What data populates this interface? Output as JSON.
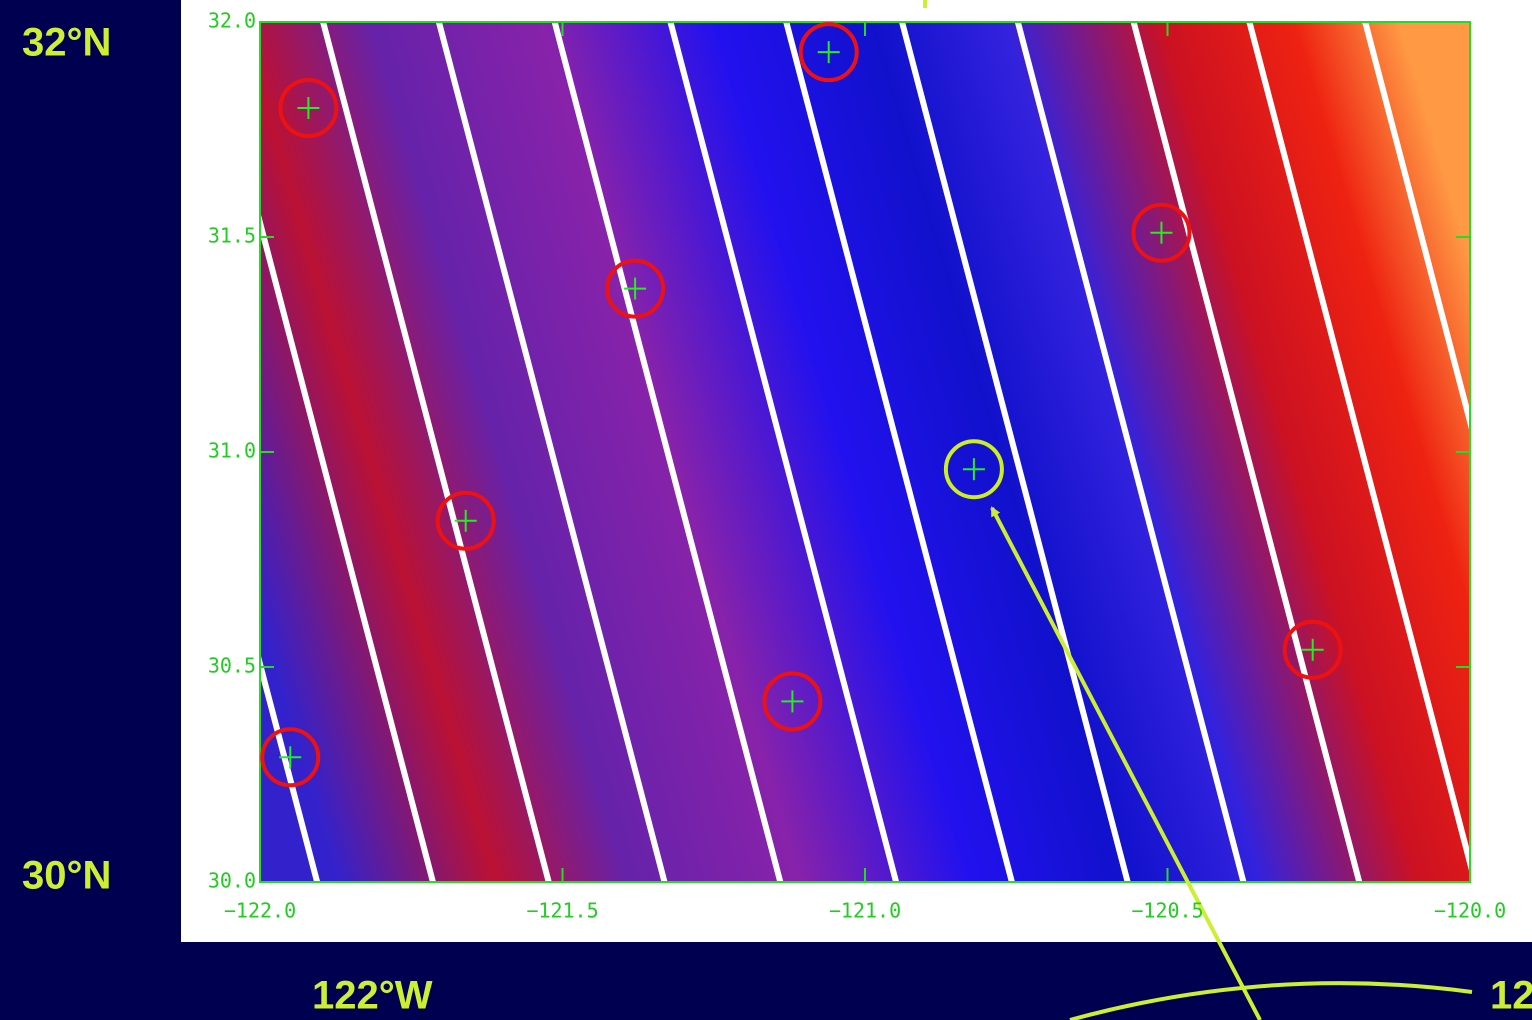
{
  "chart_data": {
    "type": "scatter",
    "xlim": [
      -122,
      -120
    ],
    "ylim": [
      30,
      32
    ],
    "xticks": [
      {
        "value": -122,
        "label": "−122.0"
      },
      {
        "value": -121.5,
        "label": "−121.5"
      },
      {
        "value": -121,
        "label": "−121.0"
      },
      {
        "value": -120.5,
        "label": "−120.5"
      },
      {
        "value": -120,
        "label": "−120.0"
      }
    ],
    "yticks": [
      {
        "value": 30,
        "label": "30.0"
      },
      30.5,
      {
        "value": 31,
        "label": "31.0"
      },
      31.5,
      {
        "value": 32,
        "label": "32.0"
      }
    ],
    "series": [
      {
        "color": "#ee1111",
        "x": [
          -121.92,
          -121.06,
          -120.51,
          -121.38,
          -121.66,
          -121.12,
          -121.95,
          -120.26
        ],
        "values": [
          31.8,
          31.93,
          31.51,
          31.38,
          30.84,
          30.42,
          30.29,
          30.54
        ]
      },
      {
        "color": "#ccee22",
        "x": [
          -120.82
        ],
        "values": [
          30.96
        ]
      }
    ],
    "annotations": [
      "32°N",
      "30°N",
      "122°W",
      "12"
    ]
  }
}
